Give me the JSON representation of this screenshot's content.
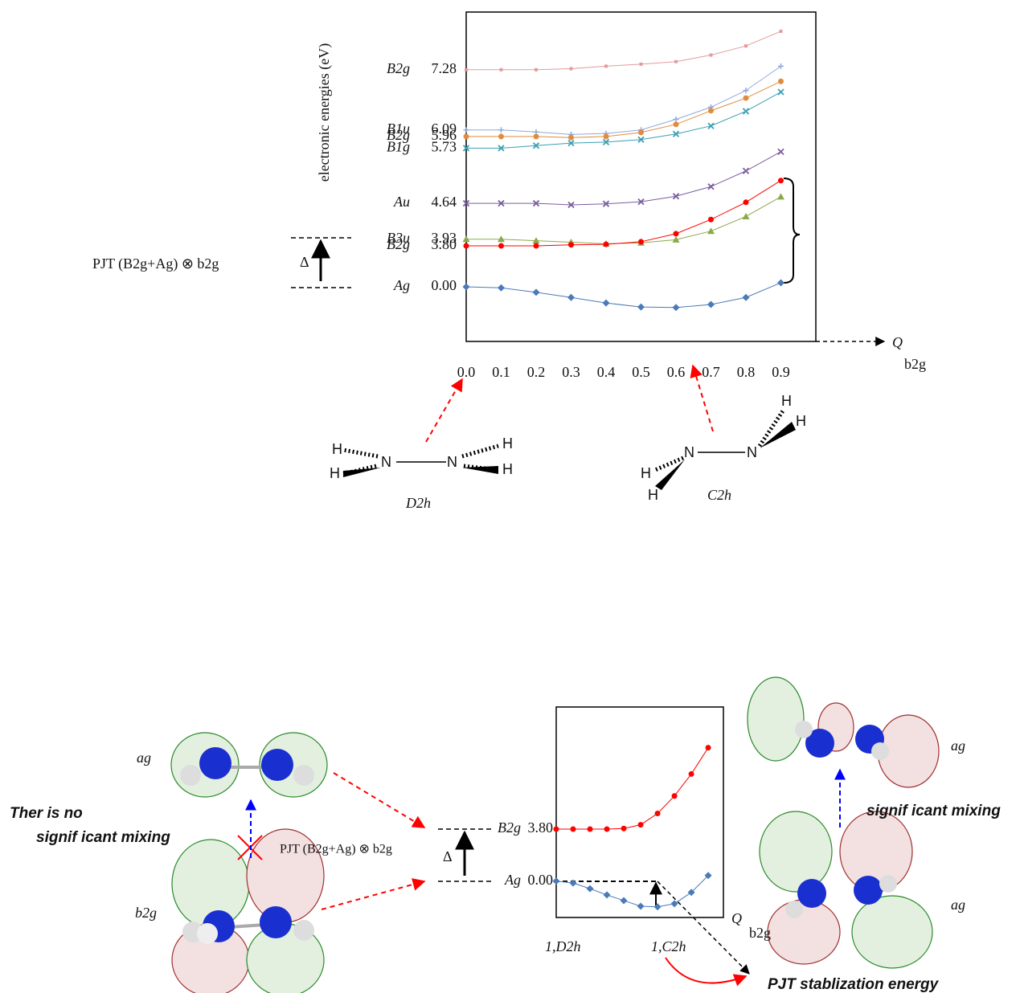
{
  "chart_data": [
    {
      "type": "line",
      "ylabel": "electronic energies (eV)",
      "xlabel": "Q",
      "xlabel_subscript": "b2g",
      "x": [
        0,
        0.1,
        0.2,
        0.3,
        0.4,
        0.5,
        0.6,
        0.7,
        0.8,
        0.9
      ],
      "xlim": [
        0,
        1.0
      ],
      "xticks": [
        {
          "value": 0,
          "label": "0.0"
        },
        0.1,
        0.2,
        0.3,
        0.4,
        0.5,
        0.6,
        0.7,
        0.8,
        0.9
      ],
      "ylim": [
        1.91,
        8.42
      ],
      "y2lim": [
        -1.08,
        5.43
      ],
      "series": [
        {
          "name": "B2g",
          "color": "#e49a9a",
          "marker": "square",
          "values": [
            7.28,
            7.28,
            7.28,
            7.3,
            7.35,
            7.39,
            7.44,
            7.57,
            7.75,
            8.04
          ],
          "value_labels": [
            "7.28",
            null,
            null,
            null,
            null,
            null,
            null,
            null,
            null,
            null
          ]
        },
        {
          "name": "B1u",
          "color": "#8eaadb",
          "marker": "plus",
          "values": [
            6.09,
            6.09,
            6.05,
            6.0,
            6.02,
            6.09,
            6.3,
            6.54,
            6.87,
            7.35
          ],
          "value_labels": [
            "6.09",
            null,
            null,
            null,
            null,
            null,
            null,
            null,
            null,
            null
          ]
        },
        {
          "name": "B2g",
          "color": "#e08c3e",
          "marker": "circle",
          "values": [
            5.96,
            5.96,
            5.96,
            5.94,
            5.96,
            6.04,
            6.2,
            6.47,
            6.72,
            7.05
          ],
          "value_labels": [
            "5.96",
            null,
            null,
            null,
            null,
            null,
            null,
            null,
            null,
            null
          ]
        },
        {
          "name": "B1g",
          "color": "#3a9fb5",
          "marker": "x",
          "values": [
            5.73,
            5.73,
            5.78,
            5.83,
            5.85,
            5.9,
            6.01,
            6.17,
            6.46,
            6.84
          ],
          "value_labels": [
            "5.73",
            null,
            null,
            null,
            null,
            null,
            null,
            null,
            null,
            null
          ]
        },
        {
          "name": "Au",
          "color": "#7a5c9e",
          "marker": "x",
          "values": [
            4.64,
            4.64,
            4.64,
            4.61,
            4.63,
            4.67,
            4.78,
            4.97,
            5.28,
            5.66
          ],
          "value_labels": [
            "4.64",
            null,
            null,
            null,
            null,
            null,
            null,
            null,
            null,
            null
          ]
        },
        {
          "name": "B3u",
          "color": "#8aaa4a",
          "marker": "triangle",
          "values": [
            3.93,
            3.93,
            3.9,
            3.87,
            3.84,
            3.86,
            3.92,
            4.09,
            4.38,
            4.77
          ],
          "value_labels": [
            "3.93",
            null,
            null,
            null,
            null,
            null,
            null,
            null,
            null,
            null
          ]
        },
        {
          "name": "B2g",
          "color": "#ff0000",
          "marker": "circle",
          "values": [
            3.8,
            3.8,
            3.8,
            3.82,
            3.83,
            3.88,
            4.04,
            4.32,
            4.66,
            5.09
          ],
          "value_labels": [
            "3.80",
            null,
            null,
            null,
            null,
            null,
            null,
            null,
            null,
            null
          ]
        },
        {
          "name": "Ag",
          "color": "#4a7ab8",
          "marker": "diamond",
          "axis": "y2",
          "values": [
            0.0,
            -0.02,
            -0.11,
            -0.21,
            -0.32,
            -0.4,
            -0.41,
            -0.35,
            -0.21,
            0.08
          ],
          "value_labels": [
            "0.00",
            null,
            null,
            null,
            null,
            null,
            null,
            null,
            null,
            null
          ]
        }
      ],
      "annotations": {
        "pjt": "PJT (B2g+Ag) ⊗ b2g",
        "delta": "Δ"
      },
      "molecules": [
        {
          "label": "D2h",
          "atoms": [
            "H",
            "H",
            "N",
            "N",
            "H",
            "H"
          ]
        },
        {
          "label": "C2h",
          "atoms": [
            "H",
            "H",
            "N",
            "N",
            "H",
            "H"
          ]
        }
      ]
    },
    {
      "type": "line",
      "xlabel": "Q",
      "xlabel_subscript": "b2g",
      "x": [
        0,
        0.1,
        0.2,
        0.3,
        0.4,
        0.5,
        0.6,
        0.7,
        0.8,
        0.9
      ],
      "xlim": [
        0,
        0.99
      ],
      "ylim": [
        2.39,
        5.75
      ],
      "y2lim": [
        -0.58,
        2.78
      ],
      "series": [
        {
          "name": "B2g",
          "color": "#ff0000",
          "marker": "circle",
          "values": [
            3.8,
            3.8,
            3.8,
            3.8,
            3.81,
            3.87,
            4.05,
            4.33,
            4.68,
            5.1
          ],
          "value_labels": [
            "3.80",
            null,
            null,
            null,
            null,
            null,
            null,
            null,
            null,
            null
          ]
        },
        {
          "name": "Ag",
          "color": "#4a7ab8",
          "marker": "diamond",
          "axis": "y2",
          "values": [
            0.0,
            -0.03,
            -0.12,
            -0.22,
            -0.31,
            -0.4,
            -0.41,
            -0.36,
            -0.18,
            0.09
          ],
          "value_labels": [
            "0.00",
            null,
            null,
            null,
            null,
            null,
            null,
            null,
            null,
            null
          ]
        }
      ],
      "annotations": {
        "no_mixing_1": "Ther is no",
        "no_mixing_2": "signif icant mixing",
        "ag_left": "ag",
        "b2g_left": "b2g",
        "pjt": "PJT (B2g+Ag) ⊗ b2g",
        "delta": "Δ",
        "d2h": "1,D2h",
        "c2h": "1,C2h",
        "stabilization": "PJT stablization energy",
        "mixing": "signif icant mixing",
        "ag_top": "ag",
        "ag_bottom": "ag"
      }
    }
  ]
}
